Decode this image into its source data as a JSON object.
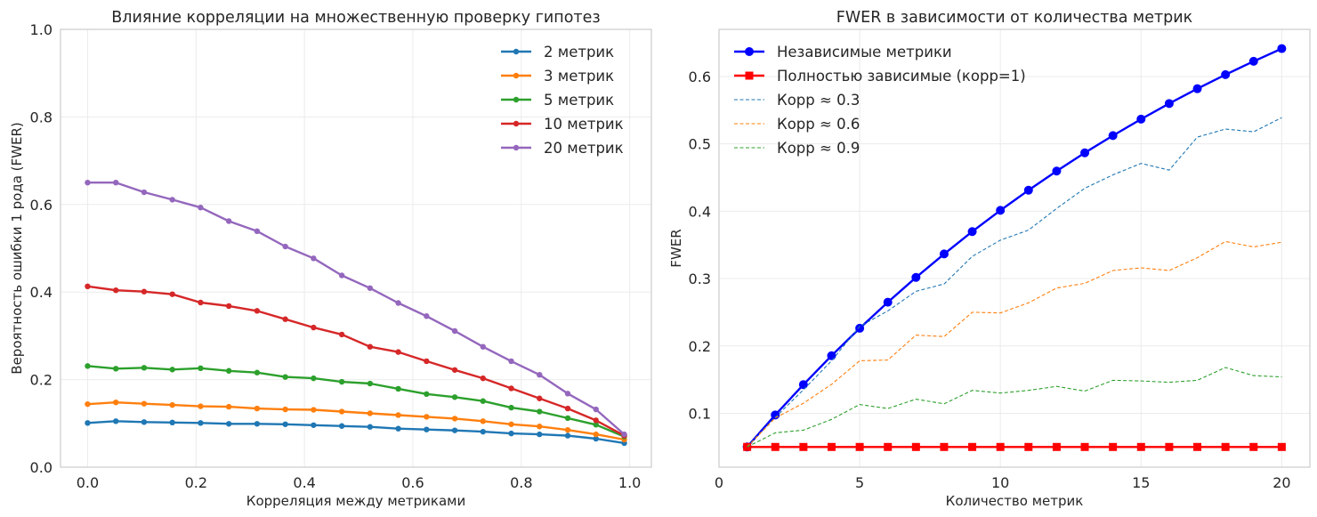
{
  "chart_data": [
    {
      "type": "line",
      "title": "Влияние корреляции на множественную проверку гипотез",
      "xlabel": "Корреляция между метриками",
      "ylabel": "Вероятность ошибки 1 рода (FWER)",
      "xlim": [
        -0.05,
        1.04
      ],
      "ylim": [
        0.0,
        1.0
      ],
      "xticks": [
        0.0,
        0.2,
        0.4,
        0.6,
        0.8,
        1.0
      ],
      "xtick_labels": [
        "0.0",
        "0.2",
        "0.4",
        "0.6",
        "0.8",
        "1.0"
      ],
      "yticks": [
        0.0,
        0.2,
        0.4,
        0.6,
        0.8,
        1.0
      ],
      "ytick_labels": [
        "0.0",
        "0.2",
        "0.4",
        "0.6",
        "0.8",
        "1.0"
      ],
      "grid": true,
      "legend_position": "top-right",
      "x": [
        0.0,
        0.0521,
        0.1042,
        0.1563,
        0.2084,
        0.2605,
        0.3126,
        0.3647,
        0.4168,
        0.4689,
        0.521,
        0.5731,
        0.6252,
        0.6773,
        0.7294,
        0.7815,
        0.8336,
        0.8857,
        0.9378,
        0.99
      ],
      "series": [
        {
          "name": "2 метрик",
          "color": "#1f77b4",
          "values": [
            0.101,
            0.105,
            0.103,
            0.102,
            0.101,
            0.099,
            0.099,
            0.098,
            0.096,
            0.094,
            0.092,
            0.088,
            0.086,
            0.084,
            0.081,
            0.077,
            0.075,
            0.072,
            0.065,
            0.055
          ]
        },
        {
          "name": "3 метрик",
          "color": "#ff7f0e",
          "values": [
            0.144,
            0.148,
            0.145,
            0.142,
            0.139,
            0.138,
            0.134,
            0.132,
            0.131,
            0.127,
            0.123,
            0.119,
            0.115,
            0.111,
            0.105,
            0.098,
            0.093,
            0.085,
            0.075,
            0.063
          ]
        },
        {
          "name": "5 метрик",
          "color": "#2ca02c",
          "values": [
            0.231,
            0.225,
            0.227,
            0.223,
            0.226,
            0.22,
            0.216,
            0.206,
            0.203,
            0.195,
            0.191,
            0.179,
            0.167,
            0.16,
            0.151,
            0.136,
            0.127,
            0.112,
            0.097,
            0.07
          ]
        },
        {
          "name": "10 метрик",
          "color": "#d62728",
          "values": [
            0.413,
            0.404,
            0.401,
            0.395,
            0.376,
            0.368,
            0.357,
            0.338,
            0.319,
            0.303,
            0.275,
            0.263,
            0.242,
            0.222,
            0.203,
            0.18,
            0.157,
            0.134,
            0.107,
            0.072
          ]
        },
        {
          "name": "20 метрик",
          "color": "#9467bd",
          "values": [
            0.65,
            0.65,
            0.628,
            0.611,
            0.593,
            0.562,
            0.539,
            0.504,
            0.477,
            0.438,
            0.409,
            0.375,
            0.345,
            0.311,
            0.275,
            0.242,
            0.211,
            0.168,
            0.132,
            0.075
          ]
        }
      ]
    },
    {
      "type": "line",
      "title": "FWER в зависимости от количества метрик",
      "xlabel": "Количество метрик",
      "ylabel": "FWER",
      "xlim": [
        0,
        21
      ],
      "ylim": [
        0.02,
        0.67
      ],
      "xticks": [
        0,
        5,
        10,
        15,
        20
      ],
      "xtick_labels": [
        "0",
        "5",
        "10",
        "15",
        "20"
      ],
      "yticks": [
        0.1,
        0.2,
        0.3,
        0.4,
        0.5,
        0.6
      ],
      "ytick_labels": [
        "0.1",
        "0.2",
        "0.3",
        "0.4",
        "0.5",
        "0.6"
      ],
      "grid": true,
      "legend_position": "top-left",
      "x": [
        1,
        2,
        3,
        4,
        5,
        6,
        7,
        8,
        9,
        10,
        11,
        12,
        13,
        14,
        15,
        16,
        17,
        18,
        19,
        20
      ],
      "series": [
        {
          "name": "Независимые метрики",
          "color": "#0000ff",
          "style": "solid-circle",
          "values": [
            0.05,
            0.0975,
            0.1426,
            0.1855,
            0.2262,
            0.2649,
            0.3017,
            0.3366,
            0.3698,
            0.4013,
            0.4312,
            0.4596,
            0.4867,
            0.5123,
            0.5367,
            0.5599,
            0.5819,
            0.6028,
            0.6226,
            0.6415
          ]
        },
        {
          "name": "Полностью зависимые (корр=1)",
          "color": "#ff0000",
          "style": "solid-square",
          "values": [
            0.05,
            0.05,
            0.05,
            0.05,
            0.05,
            0.05,
            0.05,
            0.05,
            0.05,
            0.05,
            0.05,
            0.05,
            0.05,
            0.05,
            0.05,
            0.05,
            0.05,
            0.05,
            0.05,
            0.05
          ]
        },
        {
          "name": "Корр ≈ 0.3",
          "color": "#1f77b4",
          "style": "dashed",
          "values": [
            0.05,
            0.094,
            0.135,
            0.178,
            0.229,
            0.252,
            0.281,
            0.292,
            0.333,
            0.357,
            0.372,
            0.404,
            0.434,
            0.454,
            0.471,
            0.461,
            0.51,
            0.522,
            0.518,
            0.539
          ]
        },
        {
          "name": "Корр ≈ 0.6",
          "color": "#ff7f0e",
          "style": "dashed",
          "values": [
            0.05,
            0.093,
            0.115,
            0.143,
            0.178,
            0.179,
            0.216,
            0.214,
            0.25,
            0.249,
            0.264,
            0.286,
            0.293,
            0.312,
            0.316,
            0.312,
            0.331,
            0.355,
            0.347,
            0.354
          ]
        },
        {
          "name": "Корр ≈ 0.9",
          "color": "#2ca02c",
          "style": "dashed",
          "values": [
            0.05,
            0.071,
            0.075,
            0.091,
            0.113,
            0.107,
            0.121,
            0.114,
            0.134,
            0.13,
            0.134,
            0.14,
            0.133,
            0.149,
            0.148,
            0.146,
            0.149,
            0.168,
            0.156,
            0.154
          ]
        }
      ]
    }
  ]
}
